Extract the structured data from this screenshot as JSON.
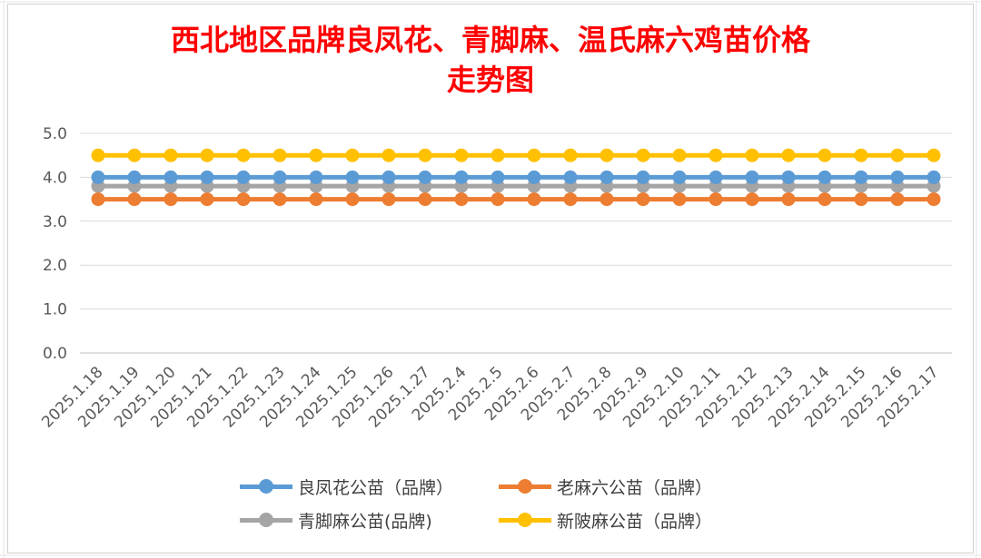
{
  "chart_data": {
    "type": "line",
    "title_lines": [
      "西北地区品牌良凤花、青脚麻、温氏麻六鸡苗价格",
      "走势图"
    ],
    "categories": [
      "2025.1.18",
      "2025.1.19",
      "2025.1.20",
      "2025.1.21",
      "2025.1.22",
      "2025.1.23",
      "2025.1.24",
      "2025.1.25",
      "2025.1.26",
      "2025.1.27",
      "2025.2.4",
      "2025.2.5",
      "2025.2.6",
      "2025.2.7",
      "2025.2.8",
      "2025.2.9",
      "2025.2.10",
      "2025.2.11",
      "2025.2.12",
      "2025.2.13",
      "2025.2.14",
      "2025.2.15",
      "2025.2.16",
      "2025.2.17"
    ],
    "y_ticks": [
      "0.0",
      "1.0",
      "2.0",
      "3.0",
      "4.0",
      "5.0"
    ],
    "ylim": [
      0,
      5
    ],
    "grid": true,
    "legend_position": "bottom",
    "series": [
      {
        "name": "良凤花公苗（品牌）",
        "color": "#5b9bd5",
        "values": [
          4.0,
          4.0,
          4.0,
          4.0,
          4.0,
          4.0,
          4.0,
          4.0,
          4.0,
          4.0,
          4.0,
          4.0,
          4.0,
          4.0,
          4.0,
          4.0,
          4.0,
          4.0,
          4.0,
          4.0,
          4.0,
          4.0,
          4.0,
          4.0
        ]
      },
      {
        "name": "老麻六公苗（品牌）",
        "color": "#ed7d31",
        "values": [
          3.5,
          3.5,
          3.5,
          3.5,
          3.5,
          3.5,
          3.5,
          3.5,
          3.5,
          3.5,
          3.5,
          3.5,
          3.5,
          3.5,
          3.5,
          3.5,
          3.5,
          3.5,
          3.5,
          3.5,
          3.5,
          3.5,
          3.5,
          3.5
        ]
      },
      {
        "name": "青脚麻公苗(品牌)",
        "color": "#a5a5a5",
        "values": [
          3.8,
          3.8,
          3.8,
          3.8,
          3.8,
          3.8,
          3.8,
          3.8,
          3.8,
          3.8,
          3.8,
          3.8,
          3.8,
          3.8,
          3.8,
          3.8,
          3.8,
          3.8,
          3.8,
          3.8,
          3.8,
          3.8,
          3.8,
          3.8
        ]
      },
      {
        "name": "新陂麻公苗（品牌）",
        "color": "#ffc000",
        "values": [
          4.5,
          4.5,
          4.5,
          4.5,
          4.5,
          4.5,
          4.5,
          4.5,
          4.5,
          4.5,
          4.5,
          4.5,
          4.5,
          4.5,
          4.5,
          4.5,
          4.5,
          4.5,
          4.5,
          4.5,
          4.5,
          4.5,
          4.5,
          4.5
        ]
      }
    ]
  }
}
